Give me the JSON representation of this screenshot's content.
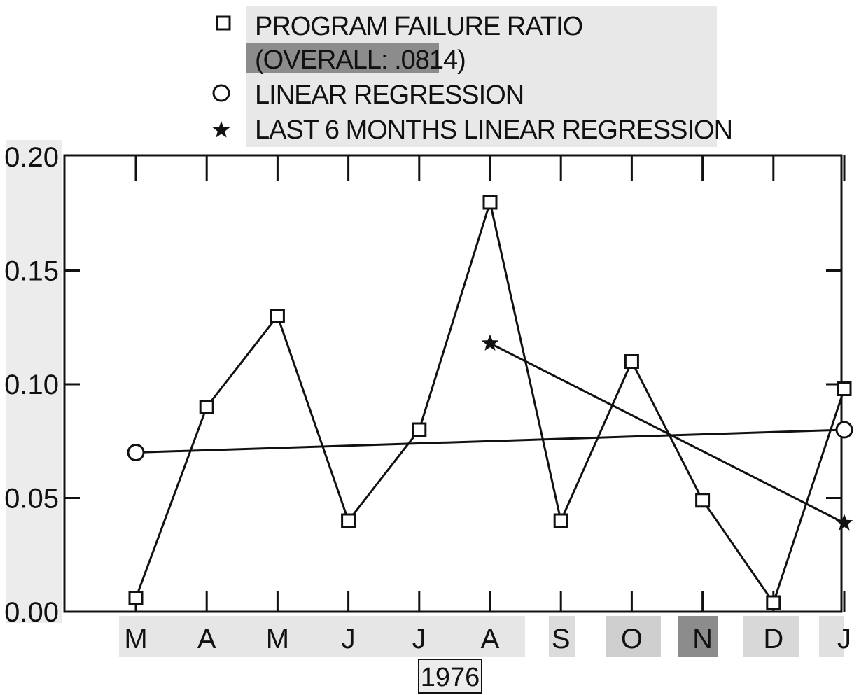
{
  "chart_data": {
    "type": "line",
    "title": "",
    "xlabel": "1976",
    "ylabel": "",
    "ylim": [
      0.0,
      0.2
    ],
    "yticks": [
      "0.00",
      "0.05",
      "0.10",
      "0.15",
      "0.20"
    ],
    "categories": [
      "M",
      "A",
      "M",
      "J",
      "J",
      "A",
      "S",
      "O",
      "N",
      "D",
      "J"
    ],
    "grid": false,
    "legend_position": "top",
    "legend": [
      {
        "marker": "square",
        "label": "PROGRAM FAILURE RATIO"
      },
      {
        "marker": "none",
        "label": "(OVERALL: .0814)"
      },
      {
        "marker": "circle",
        "label": "LINEAR REGRESSION"
      },
      {
        "marker": "star",
        "label": "LAST 6 MONTHS LINEAR REGRESSION"
      }
    ],
    "series": [
      {
        "name": "PROGRAM FAILURE RATIO",
        "marker": "square",
        "values": [
          0.006,
          0.09,
          0.13,
          0.04,
          0.08,
          0.18,
          0.04,
          0.11,
          0.049,
          0.004,
          0.098
        ]
      },
      {
        "name": "LINEAR REGRESSION",
        "marker": "circle",
        "points": [
          {
            "x_index": 0,
            "y": 0.07
          },
          {
            "x_index": 10,
            "y": 0.08
          }
        ]
      },
      {
        "name": "LAST 6 MONTHS LINEAR REGRESSION",
        "marker": "star",
        "points": [
          {
            "x_index": 5,
            "y": 0.118
          },
          {
            "x_index": 10,
            "y": 0.039
          }
        ]
      }
    ]
  }
}
